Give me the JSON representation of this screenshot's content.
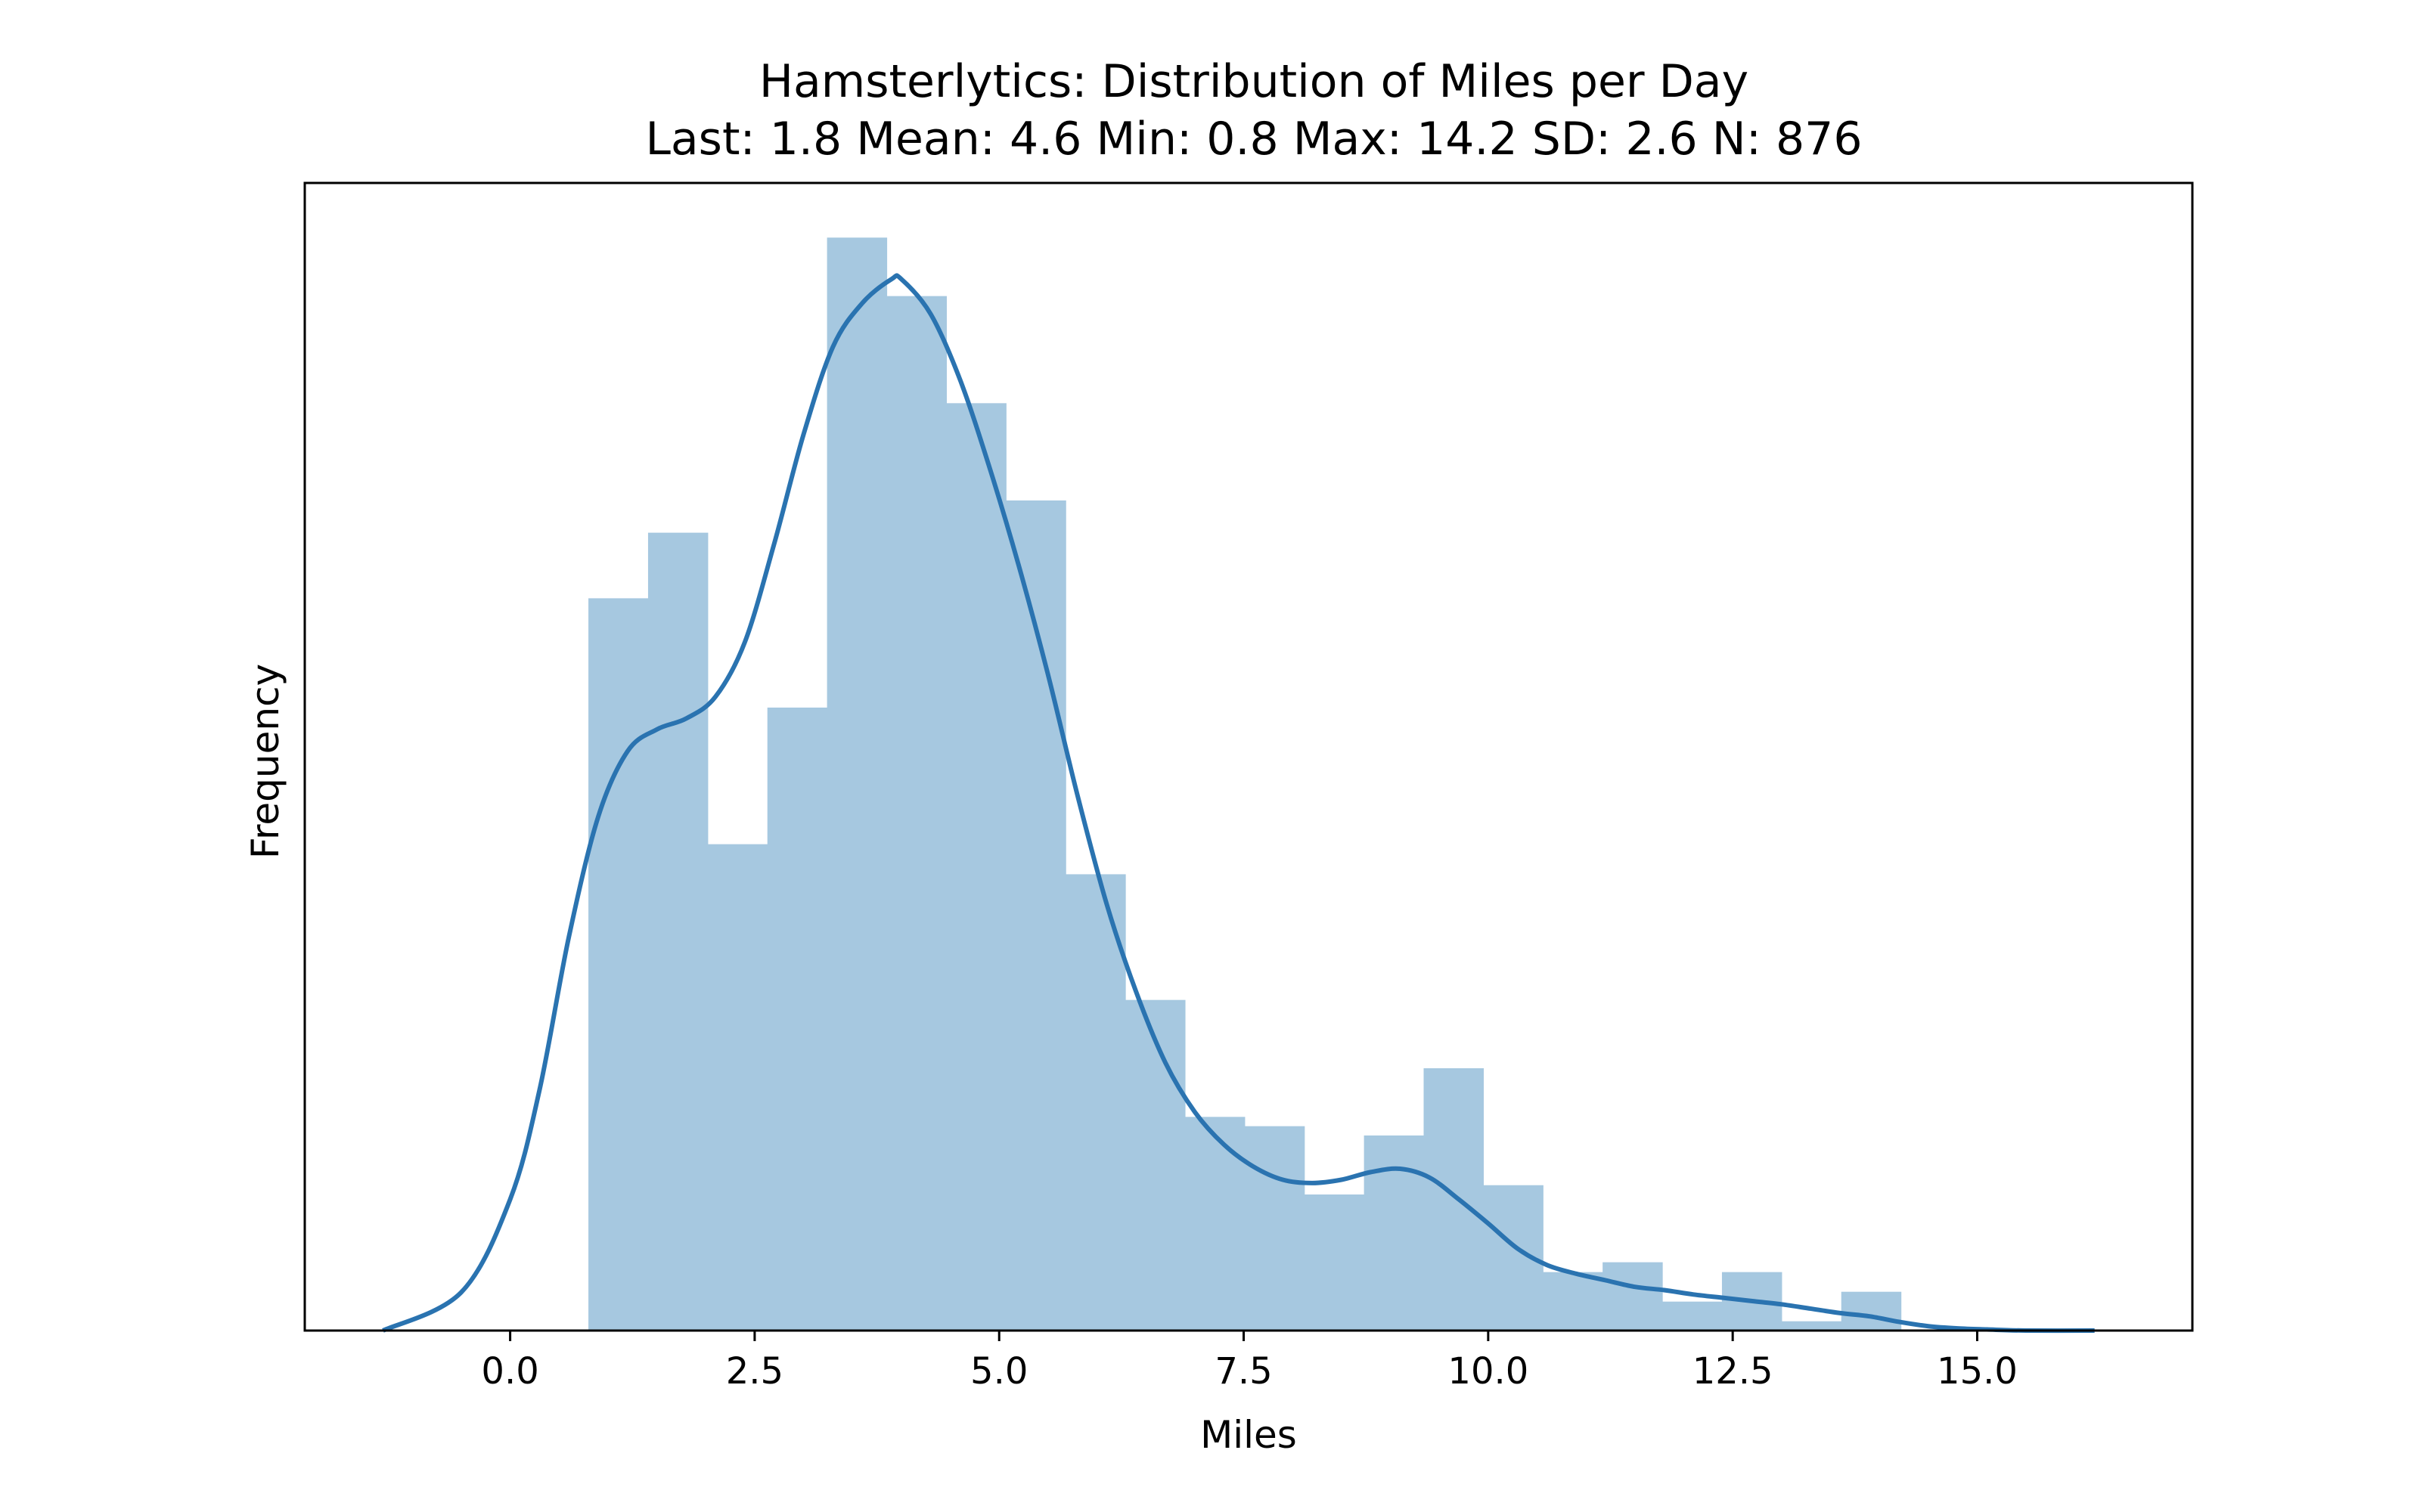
{
  "chart_data": {
    "type": "histogram",
    "title": "Hamsterlytics: Distribution of Miles per Day",
    "subtitle": "Last: 1.8  Mean: 4.6  Min: 0.8  Max: 14.2  SD: 2.6  N: 876",
    "xlabel": "Miles",
    "ylabel": "Frequency",
    "xlim": [
      -2.1,
      17.2
    ],
    "ylim": [
      0,
      1.05
    ],
    "xticks": [
      "0.0",
      "2.5",
      "5.0",
      "7.5",
      "10.0",
      "12.5",
      "15.0"
    ],
    "xtick_values": [
      0,
      2.5,
      5,
      7.5,
      10,
      12.5,
      15
    ],
    "y_tick_labels_shown": false,
    "grid": false,
    "bar_color": "#a6c8e0",
    "line_color": "#2a73b0",
    "bins": [
      {
        "x0": 0.8,
        "x1": 1.41,
        "value": 0.67
      },
      {
        "x0": 1.41,
        "x1": 2.02,
        "value": 0.73
      },
      {
        "x0": 2.02,
        "x1": 2.63,
        "value": 0.445
      },
      {
        "x0": 2.63,
        "x1": 3.24,
        "value": 0.57
      },
      {
        "x0": 3.24,
        "x1": 3.85,
        "value": 1.0
      },
      {
        "x0": 3.85,
        "x1": 4.46,
        "value": 0.9465
      },
      {
        "x0": 4.46,
        "x1": 5.07,
        "value": 0.8485
      },
      {
        "x0": 5.07,
        "x1": 5.68,
        "value": 0.7595
      },
      {
        "x0": 5.68,
        "x1": 6.29,
        "value": 0.4175
      },
      {
        "x0": 6.29,
        "x1": 6.9,
        "value": 0.3025
      },
      {
        "x0": 6.9,
        "x1": 7.51,
        "value": 0.1955
      },
      {
        "x0": 7.51,
        "x1": 8.12,
        "value": 0.187
      },
      {
        "x0": 8.12,
        "x1": 8.73,
        "value": 0.1245
      },
      {
        "x0": 8.73,
        "x1": 9.34,
        "value": 0.1785
      },
      {
        "x0": 9.34,
        "x1": 9.95,
        "value": 0.24
      },
      {
        "x0": 9.95,
        "x1": 10.56,
        "value": 0.133
      },
      {
        "x0": 10.56,
        "x1": 11.17,
        "value": 0.0535
      },
      {
        "x0": 11.17,
        "x1": 11.78,
        "value": 0.0625
      },
      {
        "x0": 11.78,
        "x1": 12.39,
        "value": 0.0265
      },
      {
        "x0": 12.39,
        "x1": 13.0,
        "value": 0.0535
      },
      {
        "x0": 13.0,
        "x1": 13.61,
        "value": 0.0085
      },
      {
        "x0": 13.61,
        "x1": 14.22,
        "value": 0.0355
      }
    ],
    "kde": {
      "x": [
        -1.3,
        -0.5,
        0.0,
        0.3,
        0.6,
        0.9,
        1.2,
        1.5,
        1.8,
        2.1,
        2.4,
        2.7,
        3.0,
        3.3,
        3.6,
        3.9,
        4.0,
        4.3,
        4.6,
        4.9,
        5.2,
        5.5,
        5.8,
        6.1,
        6.4,
        6.7,
        7.0,
        7.3,
        7.6,
        7.9,
        8.2,
        8.5,
        8.8,
        9.1,
        9.4,
        9.7,
        10.0,
        10.3,
        10.6,
        10.9,
        11.2,
        11.5,
        11.8,
        12.1,
        12.4,
        12.7,
        13.0,
        13.3,
        13.6,
        13.9,
        14.2,
        14.5,
        14.8,
        15.1,
        15.5,
        16.2
      ],
      "y": [
        0.0,
        0.035,
        0.12,
        0.22,
        0.36,
        0.47,
        0.53,
        0.55,
        0.56,
        0.58,
        0.63,
        0.72,
        0.82,
        0.9,
        0.94,
        0.962,
        0.962,
        0.93,
        0.87,
        0.79,
        0.7,
        0.6,
        0.49,
        0.39,
        0.31,
        0.245,
        0.2,
        0.17,
        0.15,
        0.138,
        0.135,
        0.138,
        0.145,
        0.148,
        0.14,
        0.12,
        0.098,
        0.075,
        0.06,
        0.052,
        0.046,
        0.04,
        0.037,
        0.033,
        0.03,
        0.027,
        0.024,
        0.02,
        0.016,
        0.013,
        0.008,
        0.004,
        0.002,
        0.001,
        0.0,
        0.0
      ]
    }
  }
}
